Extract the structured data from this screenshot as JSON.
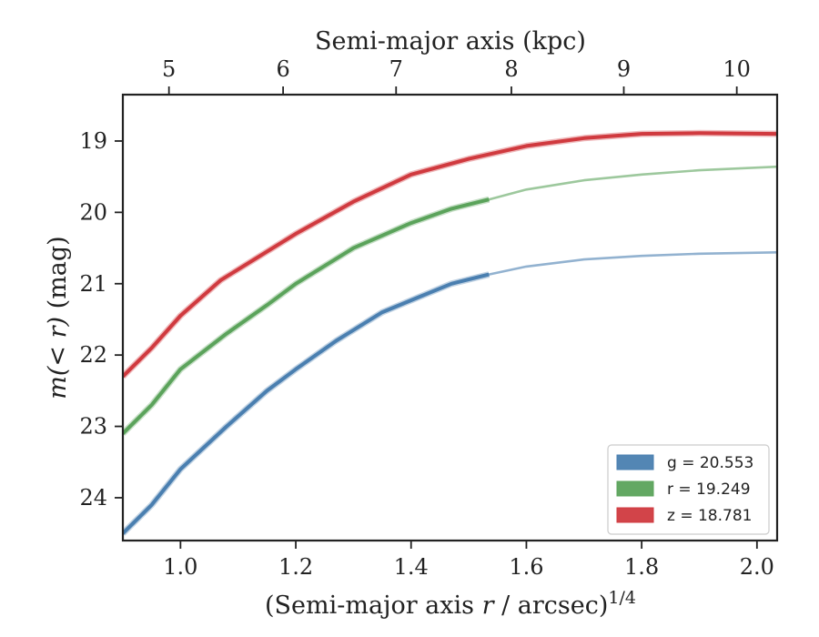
{
  "chart_data": {
    "type": "line",
    "xlabel_main": "(Semi-major axis ",
    "xlabel_var": "r",
    "xlabel_tail": " / arcsec)",
    "xlabel_sup": "1/4",
    "ylabel_var": "m(< r)",
    "ylabel_unit": " (mag)",
    "top_xlabel": "Semi-major axis (kpc)",
    "xlim": [
      0.9,
      2.035
    ],
    "ylim": [
      24.6,
      18.35
    ],
    "y_inverted": true,
    "x_ticks": [
      1.0,
      1.2,
      1.4,
      1.6,
      1.8,
      2.0
    ],
    "x_tick_labels": [
      "1.0",
      "1.2",
      "1.4",
      "1.6",
      "1.8",
      "2.0"
    ],
    "y_ticks": [
      19,
      20,
      21,
      22,
      23,
      24
    ],
    "y_tick_labels": [
      "19",
      "20",
      "21",
      "22",
      "23",
      "24"
    ],
    "top_ticks_kpc": [
      5,
      6,
      7,
      8,
      9,
      10
    ],
    "top_tick_labels": [
      "5",
      "6",
      "7",
      "8",
      "9",
      "10"
    ],
    "top_tick_x_positions": [
      0.98,
      1.178,
      1.374,
      1.574,
      1.769,
      1.965
    ],
    "legend_position": "lower-right",
    "grid": false,
    "series": [
      {
        "band": "g",
        "legend_label": "g = 20.553",
        "color": "#4a7fb0",
        "data": [
          [
            0.9,
            24.5
          ],
          [
            0.95,
            24.1
          ],
          [
            1.0,
            23.6
          ],
          [
            1.08,
            23.0
          ],
          [
            1.15,
            22.5
          ],
          [
            1.2,
            22.2
          ],
          [
            1.27,
            21.8
          ],
          [
            1.35,
            21.4
          ],
          [
            1.41,
            21.2
          ],
          [
            1.47,
            21.0
          ],
          [
            1.535,
            20.87
          ]
        ],
        "extrapolation": [
          [
            1.535,
            20.87
          ],
          [
            1.6,
            20.76
          ],
          [
            1.7,
            20.66
          ],
          [
            1.8,
            20.61
          ],
          [
            1.9,
            20.58
          ],
          [
            2.035,
            20.56
          ]
        ]
      },
      {
        "band": "r",
        "legend_label": "r = 19.249",
        "color": "#5ba35b",
        "data": [
          [
            0.9,
            23.1
          ],
          [
            0.95,
            22.7
          ],
          [
            1.0,
            22.2
          ],
          [
            1.08,
            21.7
          ],
          [
            1.15,
            21.3
          ],
          [
            1.2,
            21.0
          ],
          [
            1.3,
            20.5
          ],
          [
            1.4,
            20.15
          ],
          [
            1.47,
            19.95
          ],
          [
            1.535,
            19.82
          ]
        ],
        "extrapolation": [
          [
            1.535,
            19.82
          ],
          [
            1.6,
            19.68
          ],
          [
            1.7,
            19.55
          ],
          [
            1.8,
            19.47
          ],
          [
            1.9,
            19.41
          ],
          [
            2.035,
            19.36
          ]
        ]
      },
      {
        "band": "z",
        "legend_label": "z = 18.781",
        "color": "#d03a3f",
        "data": [
          [
            0.9,
            22.3
          ],
          [
            0.95,
            21.9
          ],
          [
            1.0,
            21.45
          ],
          [
            1.07,
            20.95
          ],
          [
            1.13,
            20.65
          ],
          [
            1.2,
            20.3
          ],
          [
            1.3,
            19.85
          ],
          [
            1.4,
            19.47
          ],
          [
            1.5,
            19.25
          ],
          [
            1.6,
            19.07
          ],
          [
            1.7,
            18.96
          ],
          [
            1.8,
            18.9
          ],
          [
            1.9,
            18.89
          ],
          [
            2.035,
            18.9
          ]
        ],
        "extrapolation": []
      }
    ]
  }
}
